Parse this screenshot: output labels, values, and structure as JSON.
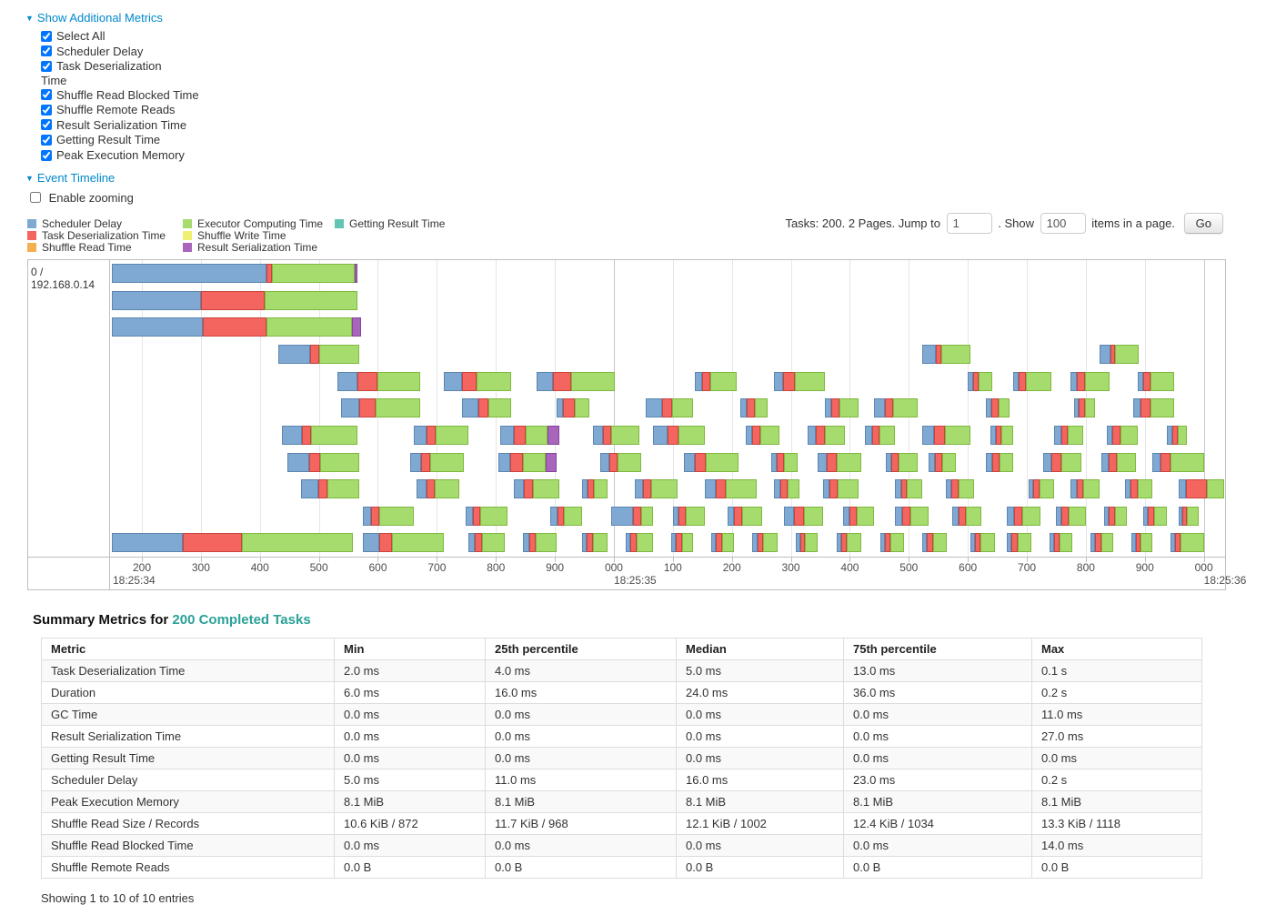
{
  "icons": {
    "caret_down": "▼"
  },
  "colors": {
    "link": "#0088cc",
    "completed_tasks_link": "#2aa198",
    "chart_border": "#bfbfbf"
  },
  "metrics_panel": {
    "toggle_label": "Show Additional Metrics",
    "items": [
      {
        "label": "Select All",
        "checked": true
      },
      {
        "label": "Scheduler Delay",
        "checked": true
      },
      {
        "label": "Task Deserialization Time",
        "checked": true,
        "wrap": true
      },
      {
        "label": "Shuffle Read Blocked Time",
        "checked": true
      },
      {
        "label": "Shuffle Remote Reads",
        "checked": true
      },
      {
        "label": "Result Serialization Time",
        "checked": true
      },
      {
        "label": "Getting Result Time",
        "checked": true
      },
      {
        "label": "Peak Execution Memory",
        "checked": true
      }
    ]
  },
  "timeline_panel": {
    "toggle_label": "Event Timeline",
    "zoom_label": "Enable zooming",
    "zoom_checked": false,
    "legend_columns": [
      [
        {
          "label": "Scheduler Delay",
          "key": "scheduler_delay"
        },
        {
          "label": "Task Deserialization Time",
          "key": "task_deserialization"
        },
        {
          "label": "Shuffle Read Time",
          "key": "shuffle_read"
        }
      ],
      [
        {
          "label": "Executor Computing Time",
          "key": "executor_computing"
        },
        {
          "label": "Shuffle Write Time",
          "key": "shuffle_write"
        },
        {
          "label": "Result Serialization Time",
          "key": "result_serialization"
        }
      ],
      [
        {
          "label": "Getting Result Time",
          "key": "getting_result"
        }
      ]
    ]
  },
  "pagination": {
    "prefix": "Tasks: 200. 2 Pages. Jump to",
    "jump_value": "1",
    "show_label": ". Show",
    "show_value": "100",
    "items_label": "items in a page.",
    "go_label": "Go"
  },
  "chart_data": {
    "type": "timeline",
    "host": "0 / 192.168.0.14",
    "time_origin": "18:25:34",
    "time_unit": "ms offset from 18:25:34.000",
    "window": {
      "min": 146,
      "max": 2036
    },
    "row_count": 11,
    "colors": {
      "scheduler_delay": {
        "fill": "#7FA9D2",
        "border": "#5C85B0"
      },
      "task_deserialization": {
        "fill": "#F4655F",
        "border": "#C9443D"
      },
      "shuffle_read": {
        "fill": "#F4AF4E",
        "border": "#C98A2E"
      },
      "executor_computing": {
        "fill": "#A6DB6E",
        "border": "#7FB93F"
      },
      "shuffle_write": {
        "fill": "#EFEF70",
        "border": "#C9C94A"
      },
      "result_serialization": {
        "fill": "#A964BC",
        "border": "#85459A"
      },
      "getting_result": {
        "fill": "#62C4B2",
        "border": "#3FA08E"
      }
    },
    "segment_order": [
      "scheduler_delay",
      "task_deserialization",
      "executor_computing",
      "result_serialization"
    ],
    "ticks": [
      {
        "t": 200,
        "label": "200",
        "time": "18:25:34",
        "time_at_edge": true
      },
      {
        "t": 300,
        "label": "300"
      },
      {
        "t": 400,
        "label": "400"
      },
      {
        "t": 500,
        "label": "500"
      },
      {
        "t": 600,
        "label": "600"
      },
      {
        "t": 700,
        "label": "700"
      },
      {
        "t": 800,
        "label": "800"
      },
      {
        "t": 900,
        "label": "900"
      },
      {
        "t": 1000,
        "label": "000",
        "major": true,
        "time": "18:25:35"
      },
      {
        "t": 1100,
        "label": "100"
      },
      {
        "t": 1200,
        "label": "200"
      },
      {
        "t": 1300,
        "label": "300"
      },
      {
        "t": 1400,
        "label": "400"
      },
      {
        "t": 1500,
        "label": "500"
      },
      {
        "t": 1600,
        "label": "600"
      },
      {
        "t": 1700,
        "label": "700"
      },
      {
        "t": 1800,
        "label": "800"
      },
      {
        "t": 1900,
        "label": "900"
      },
      {
        "t": 2000,
        "label": "000",
        "major": true,
        "time": "18:25:36"
      }
    ],
    "tasks": [
      [
        0,
        149,
        262,
        10,
        140,
        4
      ],
      [
        1,
        149,
        151,
        108,
        158,
        0
      ],
      [
        2,
        149,
        154,
        108,
        145,
        15
      ],
      [
        3,
        431,
        54,
        15,
        68,
        0
      ],
      [
        3,
        1523,
        23,
        9,
        50,
        0
      ],
      [
        3,
        1823,
        18,
        8,
        40,
        0
      ],
      [
        4,
        531,
        34,
        35,
        72,
        0
      ],
      [
        4,
        711,
        32,
        25,
        58,
        0
      ],
      [
        4,
        869,
        28,
        31,
        73,
        0
      ],
      [
        4,
        1138,
        11,
        15,
        44,
        0
      ],
      [
        4,
        1272,
        15,
        20,
        51,
        0
      ],
      [
        4,
        1600,
        9,
        10,
        23,
        0
      ],
      [
        4,
        1677,
        9,
        12,
        44,
        0
      ],
      [
        4,
        1774,
        10,
        14,
        43,
        0
      ],
      [
        4,
        1888,
        10,
        12,
        39,
        0
      ],
      [
        5,
        538,
        30,
        28,
        76,
        0
      ],
      [
        5,
        743,
        28,
        16,
        39,
        0
      ],
      [
        5,
        903,
        10,
        20,
        25,
        0
      ],
      [
        5,
        1054,
        28,
        16,
        36,
        0
      ],
      [
        5,
        1215,
        10,
        14,
        22,
        0
      ],
      [
        5,
        1358,
        10,
        15,
        32,
        0
      ],
      [
        5,
        1441,
        18,
        14,
        42,
        0
      ],
      [
        5,
        1631,
        9,
        12,
        18,
        0
      ],
      [
        5,
        1780,
        8,
        10,
        17,
        0
      ],
      [
        5,
        1881,
        12,
        16,
        40,
        0
      ],
      [
        6,
        438,
        34,
        15,
        79,
        0
      ],
      [
        6,
        661,
        22,
        15,
        56,
        0
      ],
      [
        6,
        808,
        22,
        20,
        38,
        20
      ],
      [
        6,
        964,
        18,
        14,
        47,
        0
      ],
      [
        6,
        1066,
        25,
        18,
        45,
        0
      ],
      [
        6,
        1223,
        12,
        14,
        32,
        0
      ],
      [
        6,
        1328,
        15,
        15,
        34,
        0
      ],
      [
        6,
        1426,
        12,
        12,
        27,
        0
      ],
      [
        6,
        1523,
        20,
        18,
        43,
        0
      ],
      [
        6,
        1638,
        9,
        10,
        20,
        0
      ],
      [
        6,
        1746,
        12,
        12,
        25,
        0
      ],
      [
        6,
        1835,
        10,
        14,
        29,
        0
      ],
      [
        6,
        1938,
        8,
        10,
        16,
        0
      ],
      [
        7,
        446,
        38,
        18,
        67,
        0
      ],
      [
        7,
        654,
        20,
        15,
        57,
        0
      ],
      [
        7,
        804,
        20,
        22,
        38,
        19
      ],
      [
        7,
        977,
        15,
        14,
        40,
        0
      ],
      [
        7,
        1118,
        20,
        18,
        55,
        0
      ],
      [
        7,
        1266,
        10,
        12,
        24,
        0
      ],
      [
        7,
        1346,
        15,
        16,
        43,
        0
      ],
      [
        7,
        1461,
        10,
        12,
        32,
        0
      ],
      [
        7,
        1534,
        10,
        12,
        24,
        0
      ],
      [
        7,
        1631,
        10,
        12,
        24,
        0
      ],
      [
        7,
        1728,
        14,
        16,
        34,
        0
      ],
      [
        7,
        1826,
        12,
        14,
        33,
        0
      ],
      [
        7,
        1912,
        14,
        18,
        56,
        0
      ],
      [
        8,
        469,
        30,
        15,
        55,
        0
      ],
      [
        8,
        666,
        16,
        14,
        42,
        0
      ],
      [
        8,
        831,
        16,
        16,
        45,
        0
      ],
      [
        8,
        946,
        10,
        10,
        23,
        0
      ],
      [
        8,
        1035,
        14,
        14,
        45,
        0
      ],
      [
        8,
        1154,
        18,
        18,
        52,
        0
      ],
      [
        8,
        1272,
        10,
        12,
        21,
        0
      ],
      [
        8,
        1354,
        12,
        14,
        35,
        0
      ],
      [
        8,
        1477,
        10,
        10,
        26,
        0
      ],
      [
        8,
        1562,
        10,
        12,
        27,
        0
      ],
      [
        8,
        1703,
        8,
        10,
        25,
        0
      ],
      [
        8,
        1774,
        10,
        12,
        27,
        0
      ],
      [
        8,
        1866,
        10,
        12,
        24,
        0
      ],
      [
        8,
        1958,
        12,
        35,
        30,
        0
      ],
      [
        9,
        574,
        14,
        14,
        59,
        0
      ],
      [
        9,
        749,
        12,
        12,
        47,
        0
      ],
      [
        9,
        892,
        12,
        12,
        30,
        0
      ],
      [
        9,
        995,
        38,
        14,
        19,
        0
      ],
      [
        9,
        1100,
        10,
        12,
        32,
        0
      ],
      [
        9,
        1192,
        12,
        14,
        33,
        0
      ],
      [
        9,
        1288,
        18,
        16,
        32,
        0
      ],
      [
        9,
        1389,
        10,
        12,
        30,
        0
      ],
      [
        9,
        1477,
        12,
        14,
        31,
        0
      ],
      [
        9,
        1574,
        10,
        12,
        27,
        0
      ],
      [
        9,
        1666,
        12,
        14,
        31,
        0
      ],
      [
        9,
        1749,
        10,
        12,
        29,
        0
      ],
      [
        9,
        1831,
        8,
        10,
        20,
        0
      ],
      [
        9,
        1897,
        8,
        10,
        23,
        0
      ],
      [
        9,
        1958,
        6,
        8,
        20,
        0
      ],
      [
        10,
        149,
        120,
        100,
        189,
        0
      ],
      [
        10,
        574,
        28,
        22,
        88,
        0
      ],
      [
        10,
        754,
        10,
        12,
        39,
        0
      ],
      [
        10,
        846,
        10,
        12,
        35,
        0
      ],
      [
        10,
        946,
        8,
        10,
        25,
        0
      ],
      [
        10,
        1020,
        8,
        10,
        28,
        0
      ],
      [
        10,
        1097,
        8,
        10,
        19,
        0
      ],
      [
        10,
        1165,
        8,
        10,
        21,
        0
      ],
      [
        10,
        1235,
        8,
        10,
        24,
        0
      ],
      [
        10,
        1308,
        8,
        8,
        22,
        0
      ],
      [
        10,
        1377,
        8,
        10,
        25,
        0
      ],
      [
        10,
        1451,
        8,
        10,
        23,
        0
      ],
      [
        10,
        1523,
        8,
        10,
        24,
        0
      ],
      [
        10,
        1604,
        8,
        10,
        24,
        0
      ],
      [
        10,
        1666,
        8,
        10,
        24,
        0
      ],
      [
        10,
        1738,
        8,
        10,
        21,
        0
      ],
      [
        10,
        1808,
        8,
        10,
        20,
        0
      ],
      [
        10,
        1877,
        8,
        8,
        19,
        0
      ],
      [
        10,
        1943,
        8,
        10,
        39,
        0
      ]
    ]
  },
  "summary": {
    "title_prefix": "Summary Metrics for",
    "title_link": "200 Completed Tasks",
    "table": {
      "headers": [
        "Metric",
        "Min",
        "25th percentile",
        "Median",
        "75th percentile",
        "Max"
      ],
      "rows": [
        [
          "Task Deserialization Time",
          "2.0 ms",
          "4.0 ms",
          "5.0 ms",
          "13.0 ms",
          "0.1 s"
        ],
        [
          "Duration",
          "6.0 ms",
          "16.0 ms",
          "24.0 ms",
          "36.0 ms",
          "0.2 s"
        ],
        [
          "GC Time",
          "0.0 ms",
          "0.0 ms",
          "0.0 ms",
          "0.0 ms",
          "11.0 ms"
        ],
        [
          "Result Serialization Time",
          "0.0 ms",
          "0.0 ms",
          "0.0 ms",
          "0.0 ms",
          "27.0 ms"
        ],
        [
          "Getting Result Time",
          "0.0 ms",
          "0.0 ms",
          "0.0 ms",
          "0.0 ms",
          "0.0 ms"
        ],
        [
          "Scheduler Delay",
          "5.0 ms",
          "11.0 ms",
          "16.0 ms",
          "23.0 ms",
          "0.2 s"
        ],
        [
          "Peak Execution Memory",
          "8.1 MiB",
          "8.1 MiB",
          "8.1 MiB",
          "8.1 MiB",
          "8.1 MiB"
        ],
        [
          "Shuffle Read Size / Records",
          "10.6 KiB / 872",
          "11.7 KiB / 968",
          "12.1 KiB / 1002",
          "12.4 KiB / 1034",
          "13.3 KiB / 1118"
        ],
        [
          "Shuffle Read Blocked Time",
          "0.0 ms",
          "0.0 ms",
          "0.0 ms",
          "0.0 ms",
          "14.0 ms"
        ],
        [
          "Shuffle Remote Reads",
          "0.0 B",
          "0.0 B",
          "0.0 B",
          "0.0 B",
          "0.0 B"
        ]
      ]
    },
    "footer": "Showing 1 to 10 of 10 entries"
  }
}
